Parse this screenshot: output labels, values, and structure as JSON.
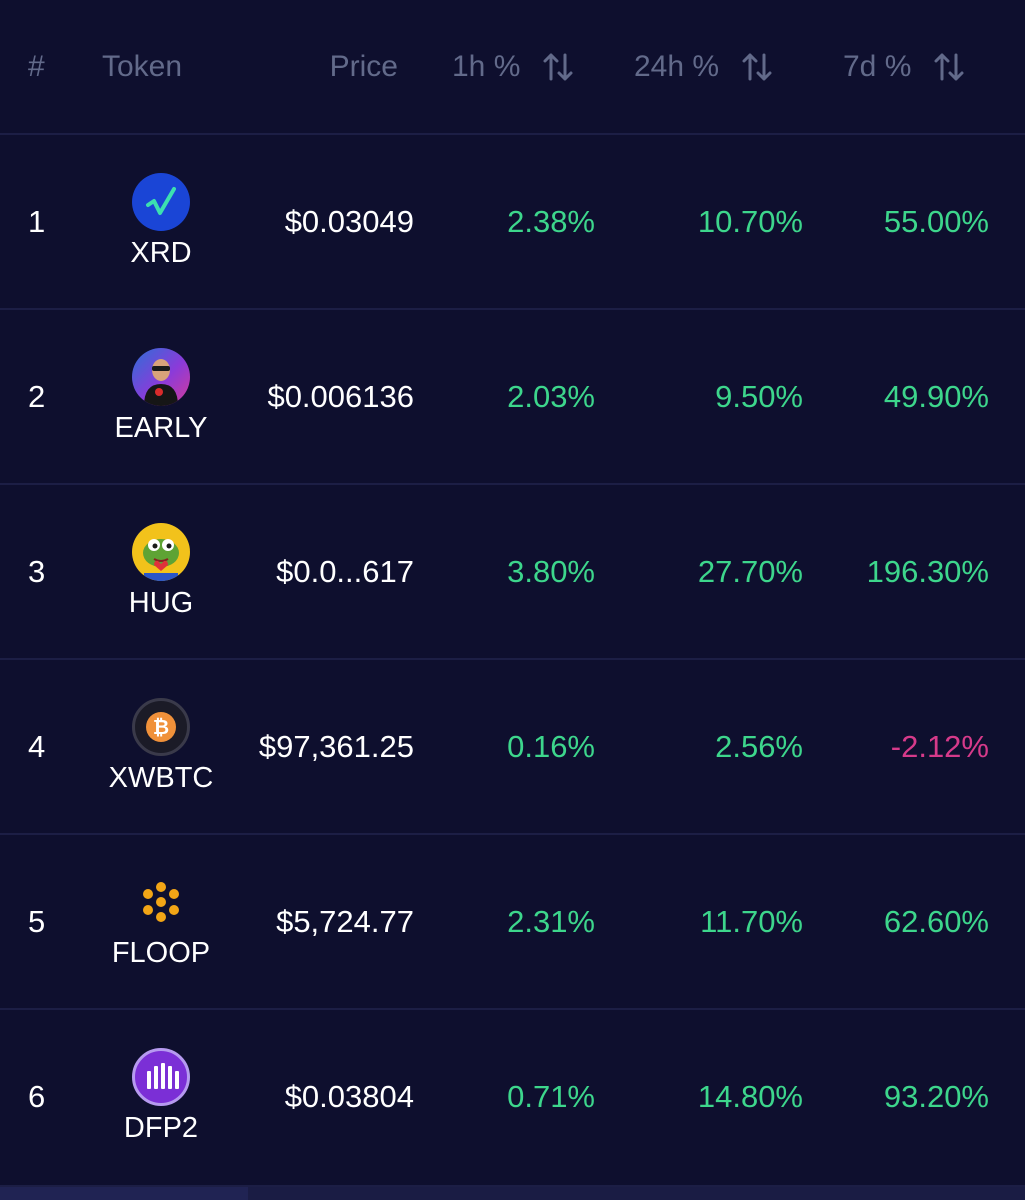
{
  "header": {
    "rank": "#",
    "token": "Token",
    "price": "Price",
    "h1": "1h %",
    "h24": "24h %",
    "d7": "7d %"
  },
  "colors": {
    "background": "#0e0f2e",
    "positive": "#3dd68c",
    "negative": "#d63a8a",
    "header_text": "#626a8a"
  },
  "rows": [
    {
      "rank": "1",
      "symbol": "XRD",
      "icon": "xrd-icon",
      "price": "$0.03049",
      "h1": "2.38%",
      "h24": "10.70%",
      "d7": "55.00%"
    },
    {
      "rank": "2",
      "symbol": "EARLY",
      "icon": "early-avatar-icon",
      "price": "$0.006136",
      "h1": "2.03%",
      "h24": "9.50%",
      "d7": "49.90%"
    },
    {
      "rank": "3",
      "symbol": "HUG",
      "icon": "pepe-hug-icon",
      "price": "$0.0...617",
      "h1": "3.80%",
      "h24": "27.70%",
      "d7": "196.30%"
    },
    {
      "rank": "4",
      "symbol": "XWBTC",
      "icon": "bitcoin-icon",
      "price": "$97,361.25",
      "h1": "0.16%",
      "h24": "2.56%",
      "d7": "-2.12%"
    },
    {
      "rank": "5",
      "symbol": "FLOOP",
      "icon": "floop-dots-icon",
      "price": "$5,724.77",
      "h1": "2.31%",
      "h24": "11.70%",
      "d7": "62.60%"
    },
    {
      "rank": "6",
      "symbol": "DFP2",
      "icon": "dfp2-bars-icon",
      "price": "$0.03804",
      "h1": "0.71%",
      "h24": "14.80%",
      "d7": "93.20%"
    }
  ]
}
